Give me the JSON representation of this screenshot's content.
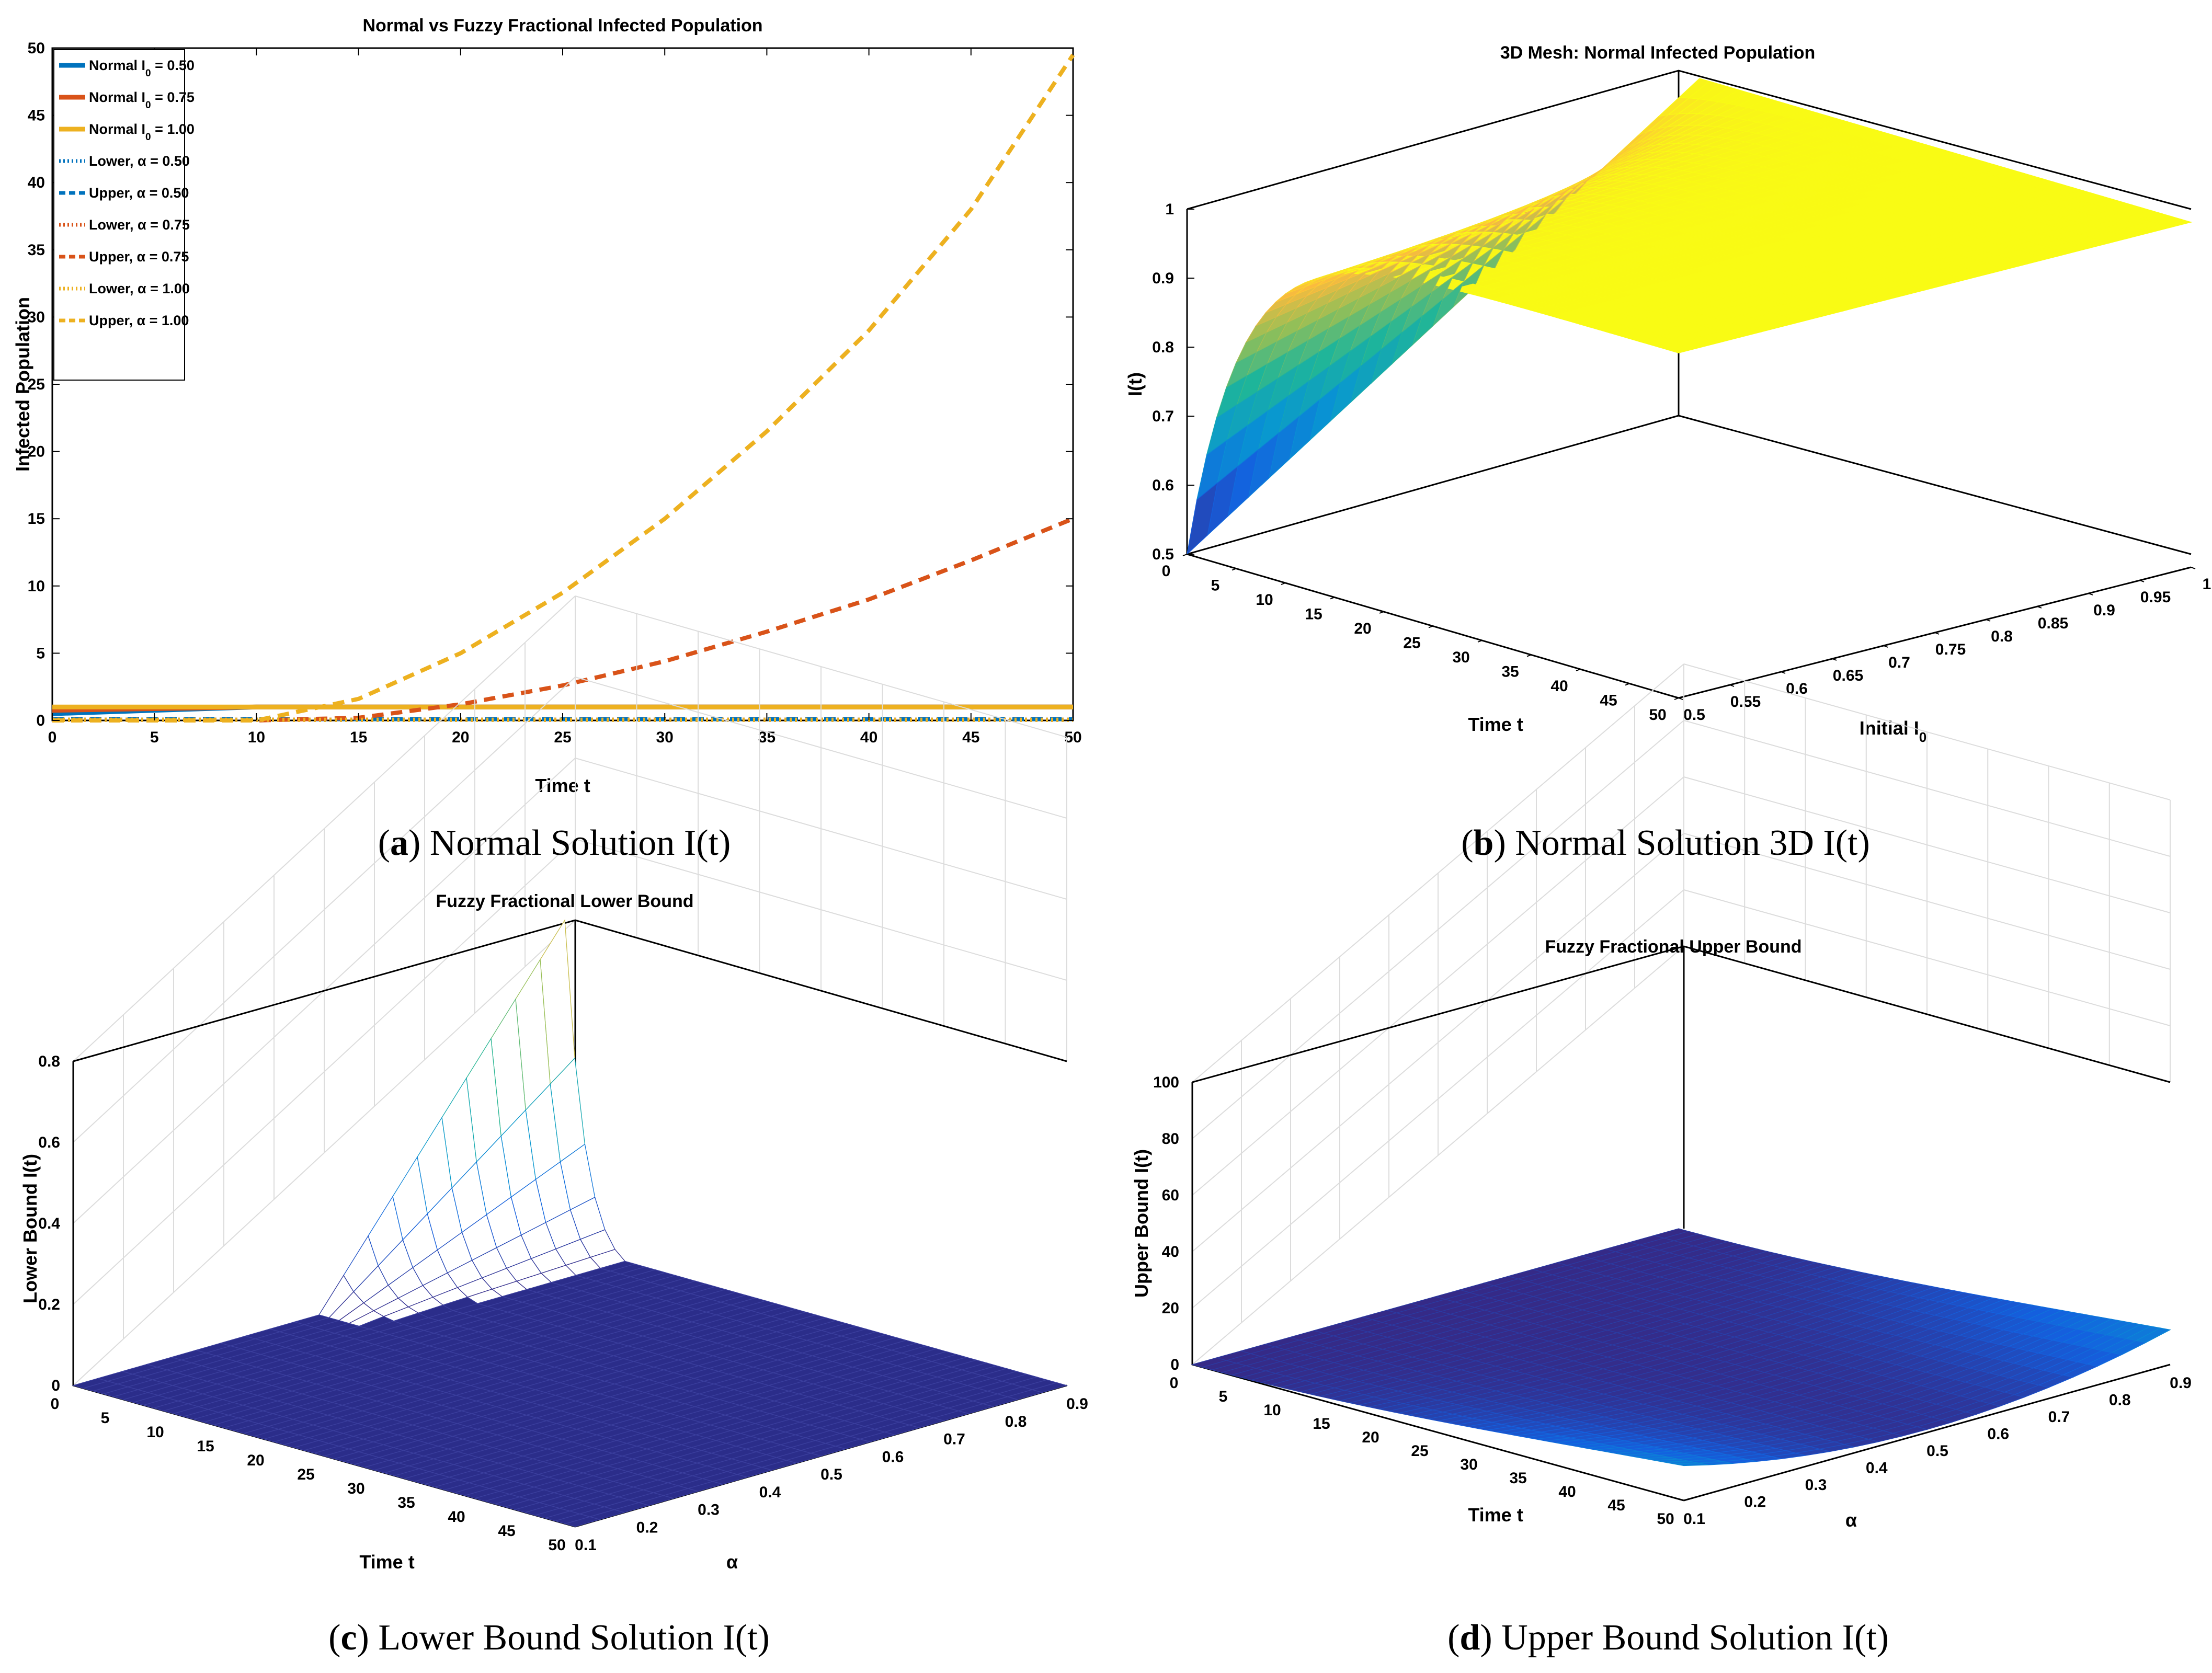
{
  "chart_data": [
    {
      "id": "a",
      "type": "line",
      "title": "Normal vs Fuzzy Fractional Infected Population",
      "xlabel": "Time t",
      "ylabel": "Infected Population",
      "xlim": [
        0,
        50
      ],
      "ylim": [
        0,
        50
      ],
      "xticks": [
        "0",
        "5",
        "10",
        "15",
        "20",
        "25",
        "30",
        "35",
        "40",
        "45",
        "50"
      ],
      "yticks": [
        "0",
        "5",
        "10",
        "15",
        "20",
        "25",
        "30",
        "35",
        "40",
        "45",
        "50"
      ],
      "legend_position": "top-left",
      "series": [
        {
          "name": "Normal I",
          "sub": "0",
          "suffix": " = 0.50",
          "color": "#0072BD",
          "style": "solid",
          "x": [
            0,
            10,
            50
          ],
          "values": [
            0.5,
            1.0,
            1.0
          ]
        },
        {
          "name": "Normal I",
          "sub": "0",
          "suffix": " = 0.75",
          "color": "#D95319",
          "style": "solid",
          "x": [
            0,
            10,
            50
          ],
          "values": [
            0.75,
            1.0,
            1.0
          ]
        },
        {
          "name": "Normal I",
          "sub": "0",
          "suffix": " = 1.00",
          "color": "#EDB120",
          "style": "solid",
          "x": [
            0,
            50
          ],
          "values": [
            1.0,
            1.0
          ]
        },
        {
          "name": "Lower, α = 0.50",
          "color": "#0072BD",
          "style": "dotted",
          "x": [
            0,
            50
          ],
          "values": [
            0.05,
            0.05
          ]
        },
        {
          "name": "Upper, α = 0.50",
          "color": "#0072BD",
          "style": "dashed",
          "x": [
            0,
            50
          ],
          "values": [
            0.1,
            0.1
          ]
        },
        {
          "name": "Lower, α = 0.75",
          "color": "#D95319",
          "style": "dotted",
          "x": [
            0,
            50
          ],
          "values": [
            0.05,
            0.05
          ]
        },
        {
          "name": "Upper, α = 0.75",
          "color": "#D95319",
          "style": "dashed",
          "x": [
            0,
            10,
            15,
            20,
            25,
            30,
            35,
            40,
            45,
            50
          ],
          "values": [
            0,
            0,
            0.2,
            1.2,
            2.6,
            4.4,
            6.6,
            9.0,
            11.9,
            15.0
          ]
        },
        {
          "name": "Lower, α = 1.00",
          "color": "#EDB120",
          "style": "dotted",
          "x": [
            0,
            50
          ],
          "values": [
            0.05,
            0.05
          ]
        },
        {
          "name": "Upper, α = 1.00",
          "color": "#EDB120",
          "style": "dashed",
          "x": [
            0,
            10,
            15,
            20,
            25,
            30,
            35,
            40,
            45,
            50
          ],
          "values": [
            0,
            0,
            1.6,
            5.0,
            9.5,
            15.0,
            21.5,
            29.0,
            38.0,
            49.5
          ]
        }
      ]
    },
    {
      "id": "b",
      "type": "surface",
      "title": "3D Mesh: Normal Infected Population",
      "xlabel": "Time t",
      "ylabel": "Initial I",
      "ylabel_sub": "0",
      "zlabel": "I(t)",
      "xlim": [
        0,
        50
      ],
      "ylim": [
        0.5,
        1
      ],
      "zlim": [
        0.5,
        1
      ],
      "xticks": [
        "0",
        "5",
        "10",
        "15",
        "20",
        "25",
        "30",
        "35",
        "40",
        "45",
        "50"
      ],
      "yticks": [
        "0.5",
        "0.55",
        "0.6",
        "0.65",
        "0.7",
        "0.75",
        "0.8",
        "0.85",
        "0.9",
        "0.95",
        "1"
      ],
      "zticks": [
        "0.5",
        "0.6",
        "0.7",
        "0.8",
        "0.9",
        "1"
      ]
    },
    {
      "id": "c",
      "type": "surface",
      "title": "Fuzzy Fractional Lower Bound",
      "xlabel": "Time t",
      "ylabel": "α",
      "zlabel": "Lower Bound I(t)",
      "xlim": [
        0,
        50
      ],
      "ylim": [
        0.1,
        0.9
      ],
      "zlim": [
        0,
        0.8
      ],
      "xticks": [
        "0",
        "5",
        "10",
        "15",
        "20",
        "25",
        "30",
        "35",
        "40",
        "45",
        "50"
      ],
      "yticks": [
        "0.1",
        "0.2",
        "0.3",
        "0.4",
        "0.5",
        "0.6",
        "0.7",
        "0.8",
        "0.9"
      ],
      "zticks": [
        "0",
        "0.2",
        "0.4",
        "0.6",
        "0.8"
      ]
    },
    {
      "id": "d",
      "type": "surface",
      "title": "Fuzzy Fractional Upper Bound",
      "xlabel": "Time t",
      "ylabel": "α",
      "zlabel": "Upper Bound I(t)",
      "xlim": [
        0,
        50
      ],
      "ylim": [
        0.1,
        0.9
      ],
      "zlim": [
        0,
        100
      ],
      "xticks": [
        "0",
        "5",
        "10",
        "15",
        "20",
        "25",
        "30",
        "35",
        "40",
        "45",
        "50"
      ],
      "yticks": [
        "0.1",
        "0.2",
        "0.3",
        "0.4",
        "0.5",
        "0.6",
        "0.7",
        "0.8",
        "0.9"
      ],
      "zticks": [
        "0",
        "20",
        "40",
        "60",
        "80",
        "100"
      ]
    }
  ],
  "captions": {
    "a": {
      "letter": "a",
      "text": " Normal Solution I(t)"
    },
    "b": {
      "letter": "b",
      "text": " Normal Solution 3D I(t)"
    },
    "c": {
      "letter": "c",
      "text": " Lower Bound Solution I(t)"
    },
    "d": {
      "letter": "d",
      "text": " Upper Bound Solution I(t)"
    }
  }
}
